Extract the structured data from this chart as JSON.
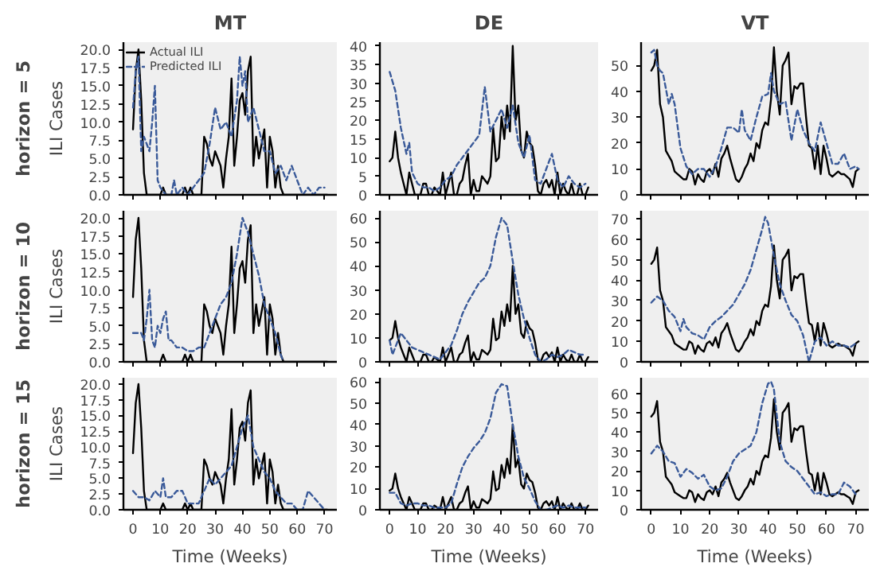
{
  "chart_data": [
    {
      "type": "line",
      "title": "MT",
      "ylabel": "ILI Cases",
      "annotations": [
        "horizon = 5"
      ],
      "tick_labels": "y",
      "legend": "top left",
      "x": [
        0,
        1,
        2,
        3,
        4,
        5,
        6,
        7,
        8,
        9,
        10,
        11,
        12,
        13,
        14,
        15,
        16,
        17,
        18,
        19,
        20,
        21,
        22,
        23,
        24,
        25,
        26,
        27,
        28,
        29,
        30,
        31,
        32,
        33,
        34,
        35,
        36,
        37,
        38,
        39,
        40,
        41,
        42,
        43,
        44,
        45,
        46,
        47,
        48,
        49,
        50,
        51,
        52,
        53,
        54,
        55,
        56,
        57,
        58,
        59,
        60,
        61,
        62,
        63,
        64,
        65,
        66,
        67,
        68,
        69,
        70,
        71
      ],
      "xlim": [
        -3.5,
        74.5
      ],
      "xticks": [
        0,
        10,
        20,
        30,
        40,
        50,
        60,
        70
      ],
      "ylim": [
        0,
        21
      ],
      "yticks": [
        {
          "value": 0,
          "label": "0.0"
        },
        {
          "value": 2.5,
          "label": "2.5"
        },
        {
          "value": 5,
          "label": "5.0"
        },
        {
          "value": 7.5,
          "label": "7.5"
        },
        {
          "value": 10,
          "label": "10.0"
        },
        {
          "value": 12.5,
          "label": "12.5"
        },
        {
          "value": 15,
          "label": "15.0"
        },
        {
          "value": 17.5,
          "label": "17.5"
        },
        {
          "value": 20,
          "label": "20.0"
        }
      ],
      "series": [
        {
          "name": "Actual ILI",
          "color": "#000000",
          "line_style": "solid",
          "values": [
            9,
            17,
            20,
            13,
            3,
            0,
            0,
            0,
            0,
            0,
            0,
            1,
            0,
            0,
            0,
            0,
            0,
            0,
            0,
            1,
            0,
            1,
            0,
            0,
            0,
            0,
            8,
            7,
            5,
            4,
            6,
            5,
            4,
            1,
            5,
            8,
            16,
            4,
            8,
            13,
            14,
            11,
            17,
            19,
            4,
            8,
            5,
            7,
            9,
            1,
            8,
            6,
            1,
            4,
            1,
            0,
            0,
            0,
            0,
            0,
            0,
            0,
            0,
            0,
            0,
            0,
            0,
            0,
            0,
            0,
            0,
            0
          ]
        },
        {
          "name": "Predicted ILI",
          "color": "#3a5a99",
          "line_style": "dashed",
          "x": [
            0,
            1,
            2,
            3,
            4,
            5,
            6,
            7,
            8,
            9,
            10,
            12,
            14,
            15,
            16,
            18,
            20,
            22,
            24,
            26,
            28,
            30,
            32,
            34,
            36,
            38,
            39,
            40,
            41,
            42,
            44,
            46,
            48,
            50,
            52,
            54,
            56,
            58,
            60,
            62,
            64,
            66,
            68,
            70
          ],
          "values": [
            12,
            17,
            19,
            6,
            8,
            7,
            6,
            10,
            15,
            2,
            1,
            0,
            0,
            2,
            0,
            1,
            0,
            1,
            2,
            3,
            7,
            12,
            9,
            10,
            8,
            13,
            19,
            15,
            17,
            10,
            12,
            9,
            6,
            6,
            3,
            4,
            2,
            4,
            2,
            0,
            1,
            0,
            1,
            1
          ]
        }
      ]
    },
    {
      "type": "line",
      "title": "DE",
      "tick_labels": "y",
      "x": [
        0,
        1,
        2,
        3,
        4,
        5,
        6,
        7,
        8,
        9,
        10,
        11,
        12,
        13,
        14,
        15,
        16,
        17,
        18,
        19,
        20,
        21,
        22,
        23,
        24,
        25,
        26,
        27,
        28,
        29,
        30,
        31,
        32,
        33,
        34,
        35,
        36,
        37,
        38,
        39,
        40,
        41,
        42,
        43,
        44,
        45,
        46,
        47,
        48,
        49,
        50,
        51,
        52,
        53,
        54,
        55,
        56,
        57,
        58,
        59,
        60,
        61,
        62,
        63,
        64,
        65,
        66,
        67,
        68,
        69,
        70,
        71
      ],
      "xlim": [
        -3.5,
        74.5
      ],
      "xticks": [
        0,
        10,
        20,
        30,
        40,
        50,
        60,
        70
      ],
      "ylim": [
        0,
        41
      ],
      "yticks": [
        0,
        5,
        10,
        15,
        20,
        25,
        30,
        35,
        40
      ],
      "series": [
        {
          "color": "#000000",
          "line_style": "solid",
          "values": [
            9,
            10,
            17,
            10,
            6,
            3,
            0,
            6,
            3,
            0,
            0,
            0,
            3,
            3,
            0,
            0,
            2,
            1,
            0,
            6,
            0,
            3,
            6,
            0,
            0,
            3,
            4,
            8,
            11,
            0,
            4,
            1,
            1,
            5,
            4,
            3,
            5,
            18,
            9,
            10,
            21,
            15,
            24,
            17,
            40,
            20,
            24,
            12,
            10,
            17,
            14,
            13,
            8,
            1,
            0,
            3,
            4,
            2,
            4,
            0,
            6,
            0,
            3,
            1,
            0,
            3,
            0,
            0,
            3,
            0,
            0,
            2
          ]
        },
        {
          "color": "#3a5a99",
          "line_style": "dashed",
          "x": [
            0,
            2,
            4,
            6,
            7,
            8,
            10,
            12,
            14,
            16,
            18,
            20,
            22,
            24,
            26,
            28,
            30,
            32,
            34,
            36,
            38,
            40,
            42,
            44,
            46,
            48,
            50,
            52,
            54,
            56,
            58,
            60,
            62,
            64,
            66,
            68,
            70
          ],
          "values": [
            33,
            28,
            18,
            11,
            14,
            6,
            3,
            2,
            2,
            1,
            2,
            4,
            5,
            8,
            10,
            12,
            14,
            16,
            29,
            17,
            20,
            23,
            18,
            24,
            14,
            10,
            16,
            4,
            3,
            7,
            11,
            4,
            2,
            5,
            3,
            2,
            3
          ]
        }
      ]
    },
    {
      "type": "line",
      "title": "VT",
      "tick_labels": "y",
      "x": [
        0,
        1,
        2,
        3,
        4,
        5,
        6,
        7,
        8,
        9,
        10,
        11,
        12,
        13,
        14,
        15,
        16,
        17,
        18,
        19,
        20,
        21,
        22,
        23,
        24,
        25,
        26,
        27,
        28,
        29,
        30,
        31,
        32,
        33,
        34,
        35,
        36,
        37,
        38,
        39,
        40,
        41,
        42,
        43,
        44,
        45,
        46,
        47,
        48,
        49,
        50,
        51,
        52,
        53,
        54,
        55,
        56,
        57,
        58,
        59,
        60,
        61,
        62,
        63,
        64,
        65,
        66,
        67,
        68,
        69,
        70,
        71
      ],
      "xlim": [
        -3.5,
        74.5
      ],
      "xticks": [
        0,
        10,
        20,
        30,
        40,
        50,
        60,
        70
      ],
      "ylim": [
        0,
        59
      ],
      "yticks": [
        0,
        10,
        20,
        30,
        40,
        50
      ],
      "series": [
        {
          "color": "#000000",
          "line_style": "solid",
          "values": [
            48,
            50,
            56,
            35,
            30,
            17,
            15,
            13,
            9,
            8,
            7,
            6,
            6,
            10,
            9,
            4,
            8,
            6,
            5,
            9,
            10,
            8,
            12,
            7,
            14,
            16,
            19,
            14,
            10,
            6,
            5,
            7,
            10,
            12,
            16,
            13,
            20,
            18,
            25,
            28,
            27,
            37,
            57,
            40,
            31,
            50,
            52,
            55,
            35,
            42,
            41,
            43,
            43,
            30,
            19,
            18,
            10,
            19,
            8,
            19,
            14,
            8,
            7,
            8,
            9,
            8,
            8,
            7,
            6,
            3,
            9,
            10
          ]
        },
        {
          "color": "#3a5a99",
          "line_style": "dashed",
          "x": [
            0,
            1,
            2,
            3,
            4,
            6,
            7,
            8,
            10,
            12,
            14,
            16,
            18,
            20,
            22,
            24,
            26,
            28,
            30,
            31,
            32,
            34,
            36,
            38,
            40,
            41,
            42,
            44,
            46,
            48,
            50,
            52,
            54,
            56,
            58,
            60,
            62,
            64,
            66,
            68,
            70,
            71
          ],
          "values": [
            55,
            56,
            50,
            48,
            47,
            35,
            39,
            35,
            18,
            11,
            8,
            10,
            10,
            7,
            11,
            18,
            26,
            26,
            24,
            33,
            25,
            21,
            30,
            38,
            39,
            47,
            40,
            35,
            36,
            21,
            33,
            25,
            20,
            17,
            28,
            20,
            12,
            12,
            16,
            10,
            11,
            10
          ]
        }
      ]
    },
    {
      "type": "line",
      "ylabel": "ILI Cases",
      "annotations": [
        "horizon = 10"
      ],
      "tick_labels": "y",
      "x": [
        0,
        1,
        2,
        3,
        4,
        5,
        6,
        7,
        8,
        9,
        10,
        11,
        12,
        13,
        14,
        15,
        16,
        17,
        18,
        19,
        20,
        21,
        22,
        23,
        24,
        25,
        26,
        27,
        28,
        29,
        30,
        31,
        32,
        33,
        34,
        35,
        36,
        37,
        38,
        39,
        40,
        41,
        42,
        43,
        44,
        45,
        46,
        47,
        48,
        49,
        50,
        51,
        52,
        53,
        54,
        55,
        56,
        57,
        58,
        59,
        60,
        61,
        62,
        63,
        64,
        65,
        66,
        67,
        68,
        69,
        70,
        71
      ],
      "xlim": [
        -3.5,
        74.5
      ],
      "xticks": [
        0,
        10,
        20,
        30,
        40,
        50,
        60,
        70
      ],
      "ylim": [
        0,
        21
      ],
      "yticks": [
        {
          "value": 0,
          "label": "0.0"
        },
        {
          "value": 2.5,
          "label": "2.5"
        },
        {
          "value": 5,
          "label": "5.0"
        },
        {
          "value": 7.5,
          "label": "7.5"
        },
        {
          "value": 10,
          "label": "10.0"
        },
        {
          "value": 12.5,
          "label": "12.5"
        },
        {
          "value": 15,
          "label": "15.0"
        },
        {
          "value": 17.5,
          "label": "17.5"
        },
        {
          "value": 20,
          "label": "20.0"
        }
      ],
      "series": [
        {
          "color": "#000000",
          "line_style": "solid",
          "values": [
            9,
            17,
            20,
            13,
            3,
            0,
            0,
            0,
            0,
            0,
            0,
            1,
            0,
            0,
            0,
            0,
            0,
            0,
            0,
            1,
            0,
            1,
            0,
            0,
            0,
            0,
            8,
            7,
            5,
            4,
            6,
            5,
            4,
            1,
            5,
            8,
            16,
            4,
            8,
            13,
            14,
            11,
            17,
            19,
            4,
            8,
            5,
            7,
            9,
            1,
            8,
            6,
            1,
            4,
            1,
            0,
            0,
            0,
            0,
            0,
            0,
            0,
            0,
            0,
            0,
            0,
            0,
            0,
            0,
            0,
            0,
            0
          ]
        },
        {
          "color": "#3a5a99",
          "line_style": "dashed",
          "x": [
            0,
            2,
            3,
            4,
            5,
            6,
            7,
            8,
            9,
            10,
            11,
            12,
            13,
            14,
            16,
            18,
            20,
            22,
            24,
            26,
            28,
            30,
            32,
            34,
            36,
            38,
            40,
            42,
            44,
            46,
            48,
            50,
            52,
            54,
            55
          ],
          "values": [
            4,
            4,
            4,
            3,
            6,
            10,
            3,
            2,
            5,
            4,
            6,
            7,
            3,
            3,
            2,
            2,
            1.5,
            1.5,
            2,
            2,
            4,
            6,
            8,
            9,
            11,
            15,
            20,
            18,
            15,
            12,
            8,
            6,
            4,
            1,
            0
          ]
        }
      ]
    },
    {
      "type": "line",
      "tick_labels": "y",
      "x": [
        0,
        1,
        2,
        3,
        4,
        5,
        6,
        7,
        8,
        9,
        10,
        11,
        12,
        13,
        14,
        15,
        16,
        17,
        18,
        19,
        20,
        21,
        22,
        23,
        24,
        25,
        26,
        27,
        28,
        29,
        30,
        31,
        32,
        33,
        34,
        35,
        36,
        37,
        38,
        39,
        40,
        41,
        42,
        43,
        44,
        45,
        46,
        47,
        48,
        49,
        50,
        51,
        52,
        53,
        54,
        55,
        56,
        57,
        58,
        59,
        60,
        61,
        62,
        63,
        64,
        65,
        66,
        67,
        68,
        69,
        70,
        71
      ],
      "xlim": [
        -3.5,
        74.5
      ],
      "xticks": [
        0,
        10,
        20,
        30,
        40,
        50,
        60,
        70
      ],
      "ylim": [
        0,
        63
      ],
      "yticks": [
        0,
        10,
        20,
        30,
        40,
        50,
        60
      ],
      "series": [
        {
          "color": "#000000",
          "line_style": "solid",
          "values": [
            9,
            10,
            17,
            10,
            6,
            3,
            0,
            6,
            3,
            0,
            0,
            0,
            3,
            3,
            0,
            0,
            2,
            1,
            0,
            6,
            0,
            3,
            6,
            0,
            0,
            3,
            4,
            8,
            11,
            0,
            4,
            1,
            1,
            5,
            4,
            3,
            5,
            18,
            9,
            10,
            21,
            15,
            24,
            17,
            40,
            20,
            24,
            12,
            10,
            17,
            14,
            13,
            8,
            1,
            0,
            3,
            4,
            2,
            4,
            0,
            6,
            0,
            3,
            1,
            0,
            3,
            0,
            0,
            3,
            0,
            0,
            2
          ]
        },
        {
          "color": "#3a5a99",
          "line_style": "dashed",
          "x": [
            0,
            1,
            2,
            4,
            6,
            8,
            10,
            12,
            14,
            16,
            18,
            20,
            22,
            24,
            26,
            28,
            30,
            32,
            34,
            36,
            38,
            40,
            42,
            44,
            46,
            48,
            50,
            52,
            54,
            56,
            58,
            60,
            62,
            64,
            66,
            68,
            70
          ],
          "values": [
            9,
            3,
            6,
            12,
            9,
            6,
            5,
            4,
            3,
            2,
            1,
            4,
            7,
            13,
            20,
            25,
            29,
            33,
            35,
            40,
            52,
            60,
            57,
            42,
            28,
            18,
            10,
            3,
            0,
            1,
            3,
            2,
            3,
            5,
            4,
            3,
            3
          ]
        }
      ]
    },
    {
      "type": "line",
      "tick_labels": "y",
      "x": [
        0,
        1,
        2,
        3,
        4,
        5,
        6,
        7,
        8,
        9,
        10,
        11,
        12,
        13,
        14,
        15,
        16,
        17,
        18,
        19,
        20,
        21,
        22,
        23,
        24,
        25,
        26,
        27,
        28,
        29,
        30,
        31,
        32,
        33,
        34,
        35,
        36,
        37,
        38,
        39,
        40,
        41,
        42,
        43,
        44,
        45,
        46,
        47,
        48,
        49,
        50,
        51,
        52,
        53,
        54,
        55,
        56,
        57,
        58,
        59,
        60,
        61,
        62,
        63,
        64,
        65,
        66,
        67,
        68,
        69,
        70,
        71
      ],
      "xlim": [
        -3.5,
        74.5
      ],
      "xticks": [
        0,
        10,
        20,
        30,
        40,
        50,
        60,
        70
      ],
      "ylim": [
        0,
        74
      ],
      "yticks": [
        0,
        10,
        20,
        30,
        40,
        50,
        60,
        70
      ],
      "series": [
        {
          "color": "#000000",
          "line_style": "solid",
          "values": [
            48,
            50,
            56,
            35,
            30,
            17,
            15,
            13,
            9,
            8,
            7,
            6,
            6,
            10,
            9,
            4,
            8,
            6,
            5,
            9,
            10,
            8,
            12,
            7,
            14,
            16,
            19,
            14,
            10,
            6,
            5,
            7,
            10,
            12,
            16,
            13,
            20,
            18,
            25,
            28,
            27,
            37,
            57,
            40,
            31,
            50,
            52,
            55,
            35,
            42,
            41,
            43,
            43,
            30,
            19,
            18,
            10,
            19,
            8,
            19,
            14,
            8,
            7,
            8,
            9,
            8,
            8,
            7,
            6,
            3,
            9,
            10
          ]
        },
        {
          "color": "#3a5a99",
          "line_style": "dashed",
          "x": [
            0,
            2,
            4,
            6,
            8,
            10,
            11,
            12,
            14,
            16,
            18,
            20,
            22,
            24,
            26,
            28,
            30,
            32,
            34,
            36,
            38,
            39,
            40,
            42,
            44,
            46,
            48,
            50,
            52,
            54,
            56,
            58,
            60,
            62,
            64,
            66,
            68,
            70
          ],
          "values": [
            29,
            32,
            30,
            25,
            22,
            15,
            21,
            17,
            14,
            13,
            11,
            17,
            20,
            22,
            25,
            28,
            33,
            38,
            45,
            55,
            65,
            71,
            68,
            52,
            38,
            30,
            23,
            20,
            13,
            0,
            10,
            12,
            8,
            10,
            8,
            8,
            7,
            9
          ]
        }
      ]
    },
    {
      "type": "line",
      "ylabel": "ILI Cases",
      "xlabel": "Time (Weeks)",
      "annotations": [
        "horizon = 15"
      ],
      "x": [
        0,
        1,
        2,
        3,
        4,
        5,
        6,
        7,
        8,
        9,
        10,
        11,
        12,
        13,
        14,
        15,
        16,
        17,
        18,
        19,
        20,
        21,
        22,
        23,
        24,
        25,
        26,
        27,
        28,
        29,
        30,
        31,
        32,
        33,
        34,
        35,
        36,
        37,
        38,
        39,
        40,
        41,
        42,
        43,
        44,
        45,
        46,
        47,
        48,
        49,
        50,
        51,
        52,
        53,
        54,
        55,
        56,
        57,
        58,
        59,
        60,
        61,
        62,
        63,
        64,
        65,
        66,
        67,
        68,
        69,
        70,
        71
      ],
      "xlim": [
        -3.5,
        74.5
      ],
      "xticks": [
        0,
        10,
        20,
        30,
        40,
        50,
        60,
        70
      ],
      "ylim": [
        0,
        21
      ],
      "yticks": [
        {
          "value": 0,
          "label": "0.0"
        },
        {
          "value": 2.5,
          "label": "2.5"
        },
        {
          "value": 5,
          "label": "5.0"
        },
        {
          "value": 7.5,
          "label": "7.5"
        },
        {
          "value": 10,
          "label": "10.0"
        },
        {
          "value": 12.5,
          "label": "12.5"
        },
        {
          "value": 15,
          "label": "15.0"
        },
        {
          "value": 17.5,
          "label": "17.5"
        },
        {
          "value": 20,
          "label": "20.0"
        }
      ],
      "series": [
        {
          "color": "#000000",
          "line_style": "solid",
          "values": [
            9,
            17,
            20,
            13,
            3,
            0,
            0,
            0,
            0,
            0,
            0,
            1,
            0,
            0,
            0,
            0,
            0,
            0,
            0,
            1,
            0,
            1,
            0,
            0,
            0,
            0,
            8,
            7,
            5,
            4,
            6,
            5,
            4,
            1,
            5,
            8,
            16,
            4,
            8,
            13,
            14,
            11,
            17,
            19,
            4,
            8,
            5,
            7,
            9,
            1,
            8,
            6,
            1,
            4,
            1,
            0,
            0,
            0,
            0,
            0,
            0,
            0,
            0,
            0,
            0,
            0,
            0,
            0,
            0,
            0,
            0,
            0
          ]
        },
        {
          "color": "#3a5a99",
          "line_style": "dashed",
          "x": [
            0,
            2,
            4,
            6,
            8,
            10,
            11,
            12,
            14,
            16,
            18,
            20,
            22,
            24,
            26,
            28,
            30,
            32,
            34,
            36,
            38,
            40,
            42,
            44,
            46,
            48,
            50,
            52,
            54,
            56,
            58,
            60,
            62,
            64,
            66,
            68,
            70
          ],
          "values": [
            3,
            2,
            2,
            1.5,
            3,
            2,
            5,
            2,
            2,
            3,
            3,
            1,
            1,
            1,
            3,
            5,
            4,
            5,
            6,
            7,
            10,
            13,
            15,
            10,
            8,
            6,
            5,
            3,
            2,
            1,
            1,
            0,
            0,
            3,
            2,
            1,
            0
          ]
        }
      ]
    },
    {
      "type": "line",
      "xlabel": "Time (Weeks)",
      "x": [
        0,
        1,
        2,
        3,
        4,
        5,
        6,
        7,
        8,
        9,
        10,
        11,
        12,
        13,
        14,
        15,
        16,
        17,
        18,
        19,
        20,
        21,
        22,
        23,
        24,
        25,
        26,
        27,
        28,
        29,
        30,
        31,
        32,
        33,
        34,
        35,
        36,
        37,
        38,
        39,
        40,
        41,
        42,
        43,
        44,
        45,
        46,
        47,
        48,
        49,
        50,
        51,
        52,
        53,
        54,
        55,
        56,
        57,
        58,
        59,
        60,
        61,
        62,
        63,
        64,
        65,
        66,
        67,
        68,
        69,
        70,
        71
      ],
      "xlim": [
        -3.5,
        74.5
      ],
      "xticks": [
        0,
        10,
        20,
        30,
        40,
        50,
        60,
        70
      ],
      "ylim": [
        0,
        62
      ],
      "yticks": [
        0,
        10,
        20,
        30,
        40,
        50,
        60
      ],
      "series": [
        {
          "color": "#000000",
          "line_style": "solid",
          "values": [
            9,
            10,
            17,
            10,
            6,
            3,
            0,
            6,
            3,
            0,
            0,
            0,
            3,
            3,
            0,
            0,
            2,
            1,
            0,
            6,
            0,
            3,
            6,
            0,
            0,
            3,
            4,
            8,
            11,
            0,
            4,
            1,
            1,
            5,
            4,
            3,
            5,
            18,
            9,
            10,
            21,
            15,
            24,
            17,
            40,
            20,
            24,
            12,
            10,
            17,
            14,
            13,
            8,
            1,
            0,
            3,
            4,
            2,
            4,
            0,
            6,
            0,
            3,
            1,
            0,
            3,
            0,
            0,
            3,
            0,
            0,
            2
          ]
        },
        {
          "color": "#3a5a99",
          "line_style": "dashed",
          "x": [
            0,
            2,
            4,
            6,
            8,
            10,
            12,
            14,
            16,
            18,
            20,
            22,
            24,
            26,
            28,
            30,
            32,
            34,
            36,
            38,
            40,
            42,
            44,
            46,
            48,
            50,
            52,
            54,
            56,
            58,
            60,
            62,
            64,
            66,
            68,
            70
          ],
          "values": [
            8,
            8,
            3,
            2,
            3,
            3,
            2,
            2,
            1,
            1,
            1,
            3,
            12,
            20,
            25,
            29,
            32,
            36,
            43,
            55,
            59,
            58,
            40,
            25,
            15,
            10,
            4,
            0,
            0,
            1,
            2,
            1,
            2,
            1,
            1,
            1
          ]
        }
      ]
    },
    {
      "type": "line",
      "xlabel": "Time (Weeks)",
      "x": [
        0,
        1,
        2,
        3,
        4,
        5,
        6,
        7,
        8,
        9,
        10,
        11,
        12,
        13,
        14,
        15,
        16,
        17,
        18,
        19,
        20,
        21,
        22,
        23,
        24,
        25,
        26,
        27,
        28,
        29,
        30,
        31,
        32,
        33,
        34,
        35,
        36,
        37,
        38,
        39,
        40,
        41,
        42,
        43,
        44,
        45,
        46,
        47,
        48,
        49,
        50,
        51,
        52,
        53,
        54,
        55,
        56,
        57,
        58,
        59,
        60,
        61,
        62,
        63,
        64,
        65,
        66,
        67,
        68,
        69,
        70,
        71
      ],
      "xlim": [
        -3.5,
        74.5
      ],
      "xticks": [
        0,
        10,
        20,
        30,
        40,
        50,
        60,
        70
      ],
      "ylim": [
        0,
        68
      ],
      "yticks": [
        0,
        10,
        20,
        30,
        40,
        50,
        60
      ],
      "series": [
        {
          "color": "#000000",
          "line_style": "solid",
          "values": [
            48,
            50,
            56,
            35,
            30,
            17,
            15,
            13,
            9,
            8,
            7,
            6,
            6,
            10,
            9,
            4,
            8,
            6,
            5,
            9,
            10,
            8,
            12,
            7,
            14,
            16,
            19,
            14,
            10,
            6,
            5,
            7,
            10,
            12,
            16,
            13,
            20,
            18,
            25,
            28,
            27,
            37,
            57,
            40,
            31,
            50,
            52,
            55,
            35,
            42,
            41,
            43,
            43,
            30,
            19,
            18,
            10,
            19,
            8,
            19,
            14,
            8,
            7,
            8,
            9,
            8,
            8,
            7,
            6,
            3,
            9,
            10
          ]
        },
        {
          "color": "#3a5a99",
          "line_style": "dashed",
          "x": [
            0,
            2,
            4,
            6,
            8,
            10,
            12,
            14,
            16,
            18,
            20,
            22,
            24,
            26,
            28,
            30,
            32,
            34,
            36,
            38,
            40,
            41,
            42,
            44,
            46,
            48,
            50,
            52,
            54,
            56,
            58,
            60,
            62,
            64,
            66,
            68,
            70
          ],
          "values": [
            29,
            33,
            30,
            25,
            24,
            17,
            21,
            19,
            16,
            18,
            12,
            10,
            11,
            17,
            25,
            29,
            31,
            33,
            40,
            55,
            65,
            66,
            62,
            35,
            25,
            22,
            20,
            16,
            12,
            8,
            9,
            7,
            8,
            8,
            14,
            12,
            8
          ]
        }
      ]
    }
  ]
}
